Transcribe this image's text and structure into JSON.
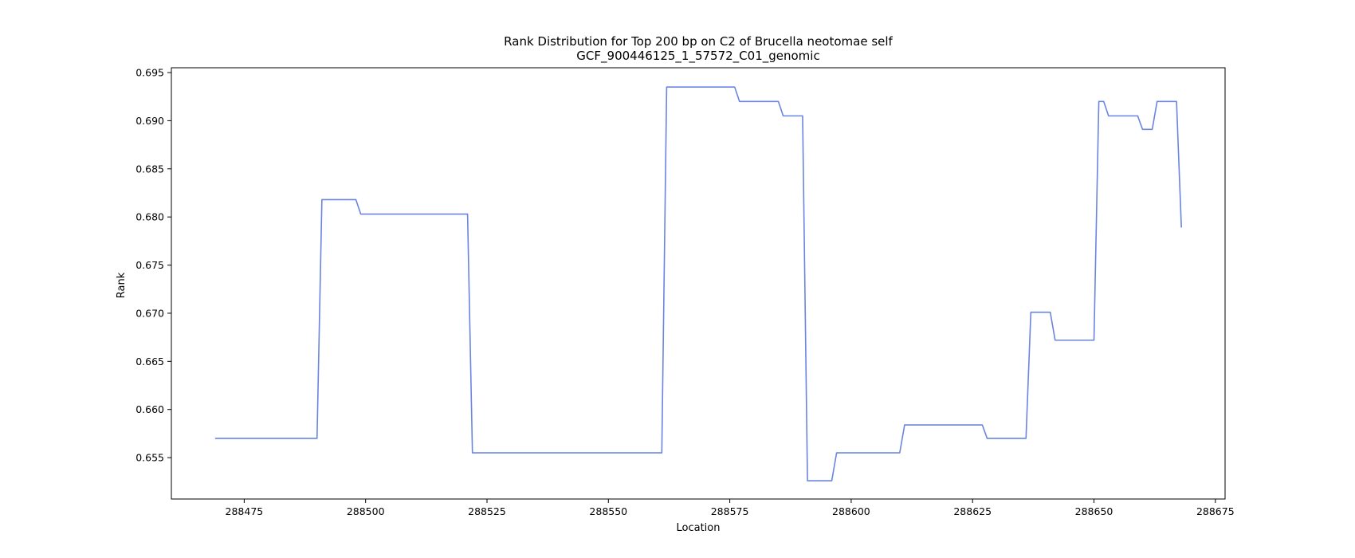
{
  "chart_data": {
    "type": "line",
    "title": "Rank Distribution for Top 200 bp on C2 of Brucella neotomae self",
    "subtitle": "GCF_900446125_1_57572_C01_genomic",
    "xlabel": "Location",
    "ylabel": "Rank",
    "xlim": [
      288460,
      288677
    ],
    "ylim": [
      0.6507,
      0.6955
    ],
    "xticks": [
      288475,
      288500,
      288525,
      288550,
      288575,
      288600,
      288625,
      288650,
      288675
    ],
    "yticks": [
      0.655,
      0.66,
      0.665,
      0.67,
      0.675,
      0.68,
      0.685,
      0.69,
      0.695
    ],
    "xtick_labels": [
      "288475",
      "288500",
      "288525",
      "288550",
      "288575",
      "288600",
      "288625",
      "288650",
      "288675"
    ],
    "ytick_labels": [
      "0.655",
      "0.660",
      "0.665",
      "0.670",
      "0.675",
      "0.680",
      "0.685",
      "0.690",
      "0.695"
    ],
    "grid": false,
    "color": "#6a85e0",
    "series": [
      {
        "x": [
          288469,
          288490,
          288491,
          288498,
          288499,
          288521,
          288522,
          288561,
          288562,
          288576,
          288577,
          288585,
          288586,
          288590,
          288591,
          288596,
          288597,
          288610,
          288611,
          288627,
          288628,
          288636,
          288637,
          288641,
          288642,
          288650,
          288651,
          288652,
          288653,
          288659,
          288660,
          288662,
          288663,
          288667,
          288668
        ],
        "y": [
          0.657,
          0.657,
          0.6818,
          0.6818,
          0.6803,
          0.6803,
          0.6555,
          0.6555,
          0.6935,
          0.6935,
          0.692,
          0.692,
          0.6905,
          0.6905,
          0.6526,
          0.6526,
          0.6555,
          0.6555,
          0.6584,
          0.6584,
          0.657,
          0.657,
          0.6701,
          0.6701,
          0.6672,
          0.6672,
          0.692,
          0.692,
          0.6905,
          0.6905,
          0.6891,
          0.6891,
          0.692,
          0.692,
          0.6789
        ]
      }
    ]
  }
}
